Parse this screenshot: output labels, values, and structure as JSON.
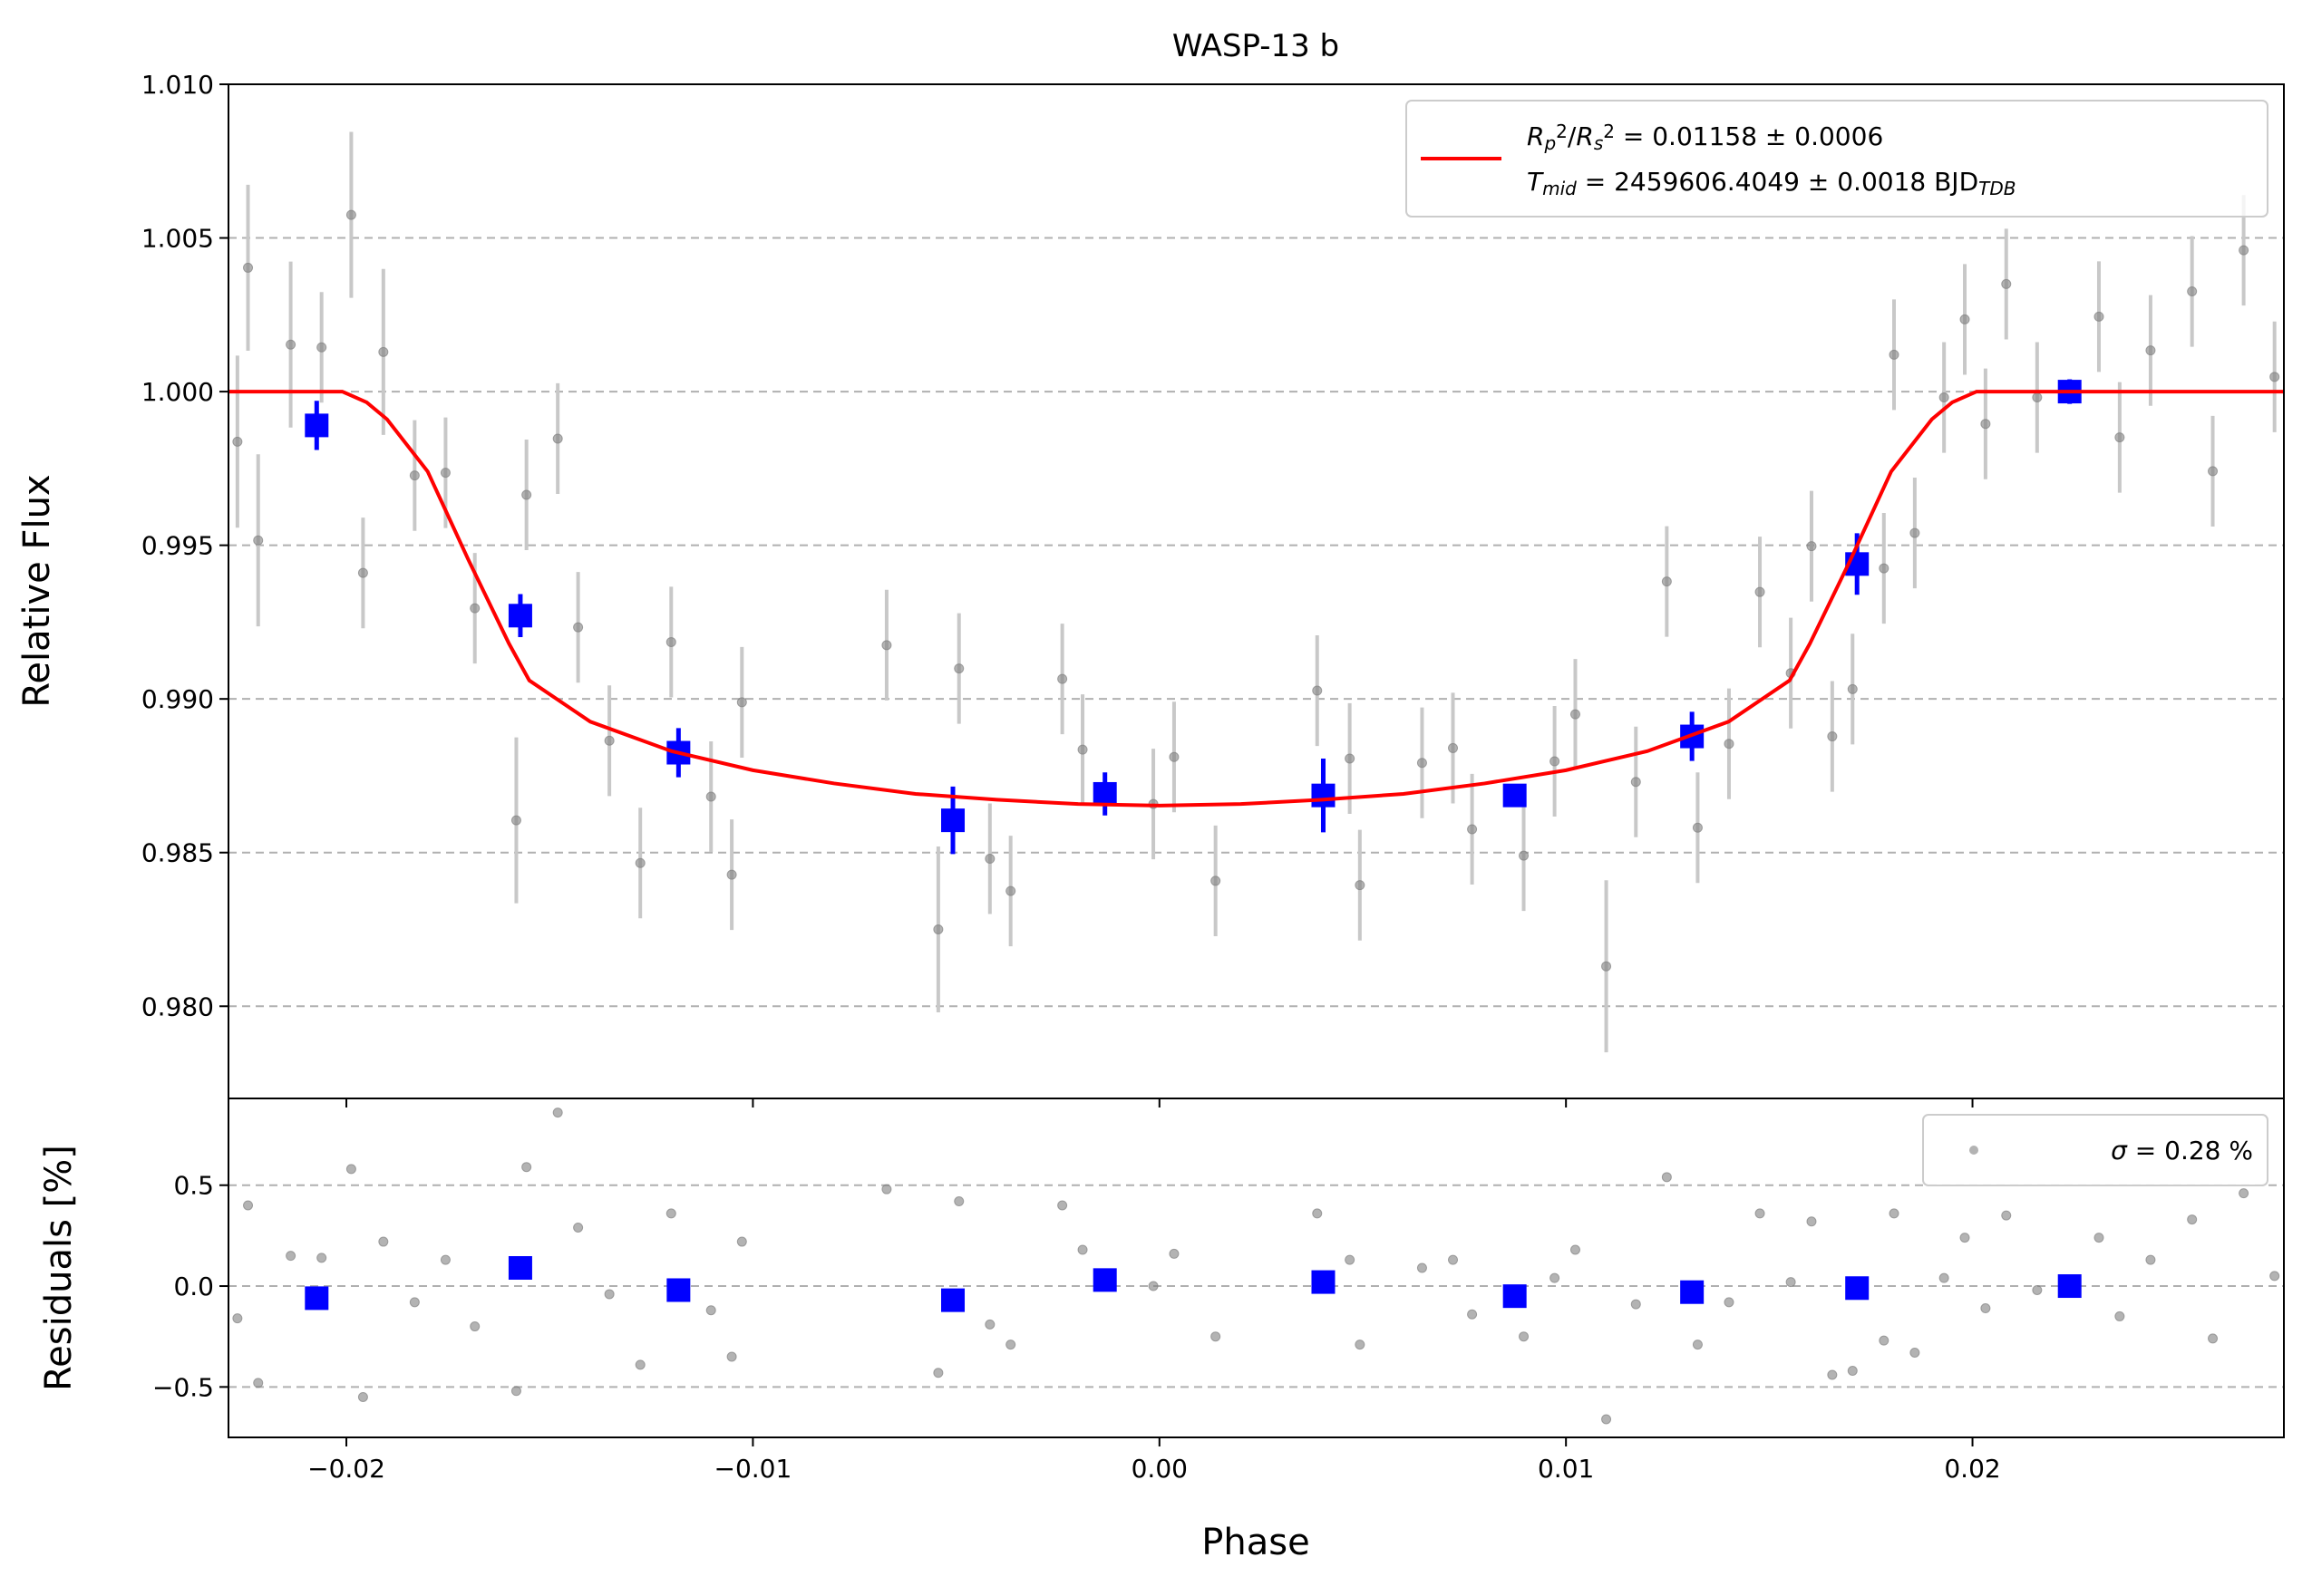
{
  "chart_data": [
    {
      "type": "scatter",
      "title": "WASP-13 b",
      "ylabel": "Relative Flux",
      "xlim": [
        -0.0229,
        0.02766
      ],
      "ylim": [
        0.977,
        1.01
      ],
      "yticks": [
        {
          "value": 0.98,
          "label": "0.980"
        },
        {
          "value": 0.985,
          "label": "0.985"
        },
        {
          "value": 0.99,
          "label": "0.990"
        },
        {
          "value": 0.995,
          "label": "0.995"
        },
        {
          "value": 1.0,
          "label": "1.000"
        },
        {
          "value": 1.005,
          "label": "1.005"
        },
        {
          "value": 1.01,
          "label": "1.010"
        }
      ],
      "grid": true,
      "legend": "upper right",
      "series": [
        {
          "kind": "errorbar-points",
          "color": "#808080",
          "errcolor": "#c8c8c8",
          "x": [
            -0.02268,
            -0.02242,
            -0.02217,
            -0.02137,
            -0.02061,
            -0.01988,
            -0.01959,
            -0.01909,
            -0.01832,
            -0.01756,
            -0.01684,
            -0.01582,
            -0.01557,
            -0.0148,
            -0.0143,
            -0.01353,
            -0.01277,
            -0.01201,
            -0.01103,
            -0.01052,
            -0.01027,
            -0.00671,
            -0.00544,
            -0.00493,
            -0.00417,
            -0.00366,
            -0.00239,
            -0.00189,
            -0.00015,
            0.00036,
            0.00138,
            0.00388,
            0.00468,
            0.00493,
            0.00646,
            0.00722,
            0.00769,
            0.00896,
            0.00972,
            0.01023,
            0.01099,
            0.01172,
            0.01248,
            0.01324,
            0.01401,
            0.01477,
            0.01553,
            0.01604,
            0.01655,
            0.01705,
            0.01782,
            0.01807,
            0.01858,
            0.0193,
            0.01981,
            0.02032,
            0.02083,
            0.02159,
            0.02311,
            0.02362,
            0.02438,
            0.0254,
            0.02591,
            0.02667,
            0.02743
          ],
          "values": [
            0.99837,
            1.00403,
            0.99516,
            1.00153,
            1.00144,
            1.00575,
            0.9941,
            1.00129,
            0.99727,
            0.99736,
            0.99295,
            0.98605,
            0.99664,
            0.99847,
            0.99233,
            0.98864,
            0.98466,
            0.99185,
            0.98682,
            0.98428,
            0.98989,
            0.99175,
            0.9825,
            0.99099,
            0.9848,
            0.98375,
            0.99065,
            0.98835,
            0.98658,
            0.98811,
            0.98408,
            0.99027,
            0.98806,
            0.98394,
            0.98792,
            0.9884,
            0.98576,
            0.9849,
            0.98797,
            0.9895,
            0.9813,
            0.9873,
            0.99382,
            0.98581,
            0.98854,
            0.99348,
            0.99084,
            0.99497,
            0.98878,
            0.99032,
            0.99425,
            1.0012,
            0.9954,
            0.99981,
            1.00235,
            0.99895,
            1.0035,
            0.99981,
            1.00244,
            0.99851,
            1.00134,
            1.00326,
            0.99741,
            1.0046,
            1.00048
          ],
          "errors": [
            0.0028,
            0.0027,
            0.0028,
            0.0027,
            0.0018,
            0.0027,
            0.0018,
            0.0027,
            0.0018,
            0.0018,
            0.0018,
            0.0027,
            0.0018,
            0.0018,
            0.0018,
            0.0018,
            0.0018,
            0.0018,
            0.0018,
            0.0018,
            0.0018,
            0.0018,
            0.0027,
            0.0018,
            0.0018,
            0.0018,
            0.0018,
            0.0018,
            0.0018,
            0.0018,
            0.0018,
            0.0018,
            0.0018,
            0.0018,
            0.0018,
            0.0018,
            0.0018,
            0.0018,
            0.0018,
            0.0018,
            0.0028,
            0.0018,
            0.0018,
            0.0018,
            0.0018,
            0.0018,
            0.0018,
            0.0018,
            0.0018,
            0.0018,
            0.0018,
            0.0018,
            0.0018,
            0.0018,
            0.0018,
            0.0018,
            0.0018,
            0.0018,
            0.0018,
            0.0018,
            0.0018,
            0.0018,
            0.0018,
            0.0018,
            0.0018
          ]
        },
        {
          "kind": "errorbar-squares",
          "color": "#0000ff",
          "x": [
            -0.02073,
            -0.01572,
            -0.01183,
            -0.00508,
            -0.00134,
            0.00403,
            0.00874,
            0.0131,
            0.01716,
            0.02239
          ],
          "values": [
            0.9989,
            0.99271,
            0.98825,
            0.98605,
            0.98691,
            0.98686,
            0.98686,
            0.98878,
            0.99439,
            1.0
          ],
          "errors": [
            0.0008,
            0.0007,
            0.0008,
            0.0011,
            0.0007,
            0.0012,
            0.0003,
            0.0008,
            0.001,
            0.0004
          ]
        },
        {
          "kind": "line",
          "color": "#ff0000",
          "legend_lines": [
            [
              {
                "text": "R",
                "italic": true
              },
              {
                "text": "p",
                "italic": true,
                "pos": "sub"
              },
              {
                "text": "2",
                "pos": "sup"
              },
              {
                "text": "/"
              },
              {
                "text": "R",
                "italic": true
              },
              {
                "text": "s",
                "italic": true,
                "pos": "sub"
              },
              {
                "text": "2",
                "pos": "sup"
              },
              {
                "text": " = 0.01158 ± 0.0006"
              }
            ],
            [
              {
                "text": "T",
                "italic": true
              },
              {
                "text": "mid",
                "italic": true,
                "pos": "sub"
              },
              {
                "text": " = 2459606.4049 ± 0.0018 BJD"
              },
              {
                "text": "TDB",
                "italic": true,
                "pos": "sub"
              }
            ]
          ],
          "x": [
            -0.0229,
            -0.0201,
            -0.0195,
            -0.019,
            -0.018,
            -0.017,
            -0.016,
            -0.0155,
            -0.014,
            -0.012,
            -0.01,
            -0.008,
            -0.006,
            -0.004,
            -0.002,
            0,
            0.002,
            0.004,
            0.006,
            0.008,
            0.01,
            0.012,
            0.014,
            0.0155,
            0.016,
            0.017,
            0.018,
            0.019,
            0.0195,
            0.0201,
            0.02766
          ],
          "values": [
            1,
            1,
            0.99965,
            0.9991,
            0.9974,
            0.99453,
            0.9918,
            0.9906,
            0.98926,
            0.9883,
            0.98768,
            0.98725,
            0.98691,
            0.98672,
            0.98658,
            0.98653,
            0.98658,
            0.98672,
            0.98691,
            0.98725,
            0.98768,
            0.9883,
            0.98926,
            0.9906,
            0.9918,
            0.99453,
            0.9974,
            0.9991,
            0.99965,
            1,
            1
          ]
        }
      ]
    },
    {
      "type": "scatter",
      "xlabel": "Phase",
      "ylabel": "Residuals [%]",
      "xlim": [
        -0.0229,
        0.02766
      ],
      "ylim": [
        -0.75,
        0.93
      ],
      "xticks": [
        {
          "value": -0.02,
          "label": "−0.02"
        },
        {
          "value": -0.01,
          "label": "−0.01"
        },
        {
          "value": 0,
          "label": "0.00"
        },
        0.01,
        0.02
      ],
      "yticks": [
        {
          "value": -0.5,
          "label": "−0.5"
        },
        {
          "value": 0,
          "label": "0.0"
        },
        0.5
      ],
      "grid": true,
      "legend": "upper right",
      "series": [
        {
          "kind": "points",
          "color": "#808080",
          "legend_lines": [
            [
              {
                "text": "σ",
                "italic": true
              },
              {
                "text": " = 0.28 %"
              }
            ]
          ],
          "x": [
            -0.02268,
            -0.02242,
            -0.02217,
            -0.02137,
            -0.02061,
            -0.01988,
            -0.01959,
            -0.01909,
            -0.01832,
            -0.01756,
            -0.01684,
            -0.01582,
            -0.01557,
            -0.0148,
            -0.0143,
            -0.01353,
            -0.01277,
            -0.01201,
            -0.01103,
            -0.01052,
            -0.01027,
            -0.00671,
            -0.00544,
            -0.00493,
            -0.00417,
            -0.00366,
            -0.00239,
            -0.00189,
            -0.00015,
            0.00036,
            0.00138,
            0.00388,
            0.00468,
            0.00493,
            0.00646,
            0.00722,
            0.00769,
            0.00896,
            0.00972,
            0.01023,
            0.01099,
            0.01172,
            0.01248,
            0.01324,
            0.01401,
            0.01477,
            0.01553,
            0.01604,
            0.01655,
            0.01705,
            0.01782,
            0.01807,
            0.01858,
            0.0193,
            0.01981,
            0.02032,
            0.02083,
            0.02159,
            0.02311,
            0.02362,
            0.02438,
            0.0254,
            0.02591,
            0.02667,
            0.02743
          ],
          "values": [
            -0.16,
            0.4,
            -0.48,
            0.15,
            0.14,
            0.58,
            -0.55,
            0.22,
            -0.08,
            0.13,
            -0.2,
            -0.52,
            0.59,
            0.86,
            0.29,
            -0.04,
            -0.39,
            0.36,
            -0.12,
            -0.35,
            0.22,
            0.48,
            -0.43,
            0.42,
            -0.19,
            -0.29,
            0.4,
            0.18,
            0,
            0.16,
            -0.25,
            0.36,
            0.13,
            -0.29,
            0.09,
            0.13,
            -0.14,
            -0.25,
            0.04,
            0.18,
            -0.66,
            -0.09,
            0.54,
            -0.29,
            -0.08,
            0.36,
            0.02,
            0.32,
            -0.44,
            -0.42,
            -0.27,
            0.36,
            -0.33,
            0.04,
            0.24,
            -0.11,
            0.35,
            -0.02,
            0.24,
            -0.15,
            0.13,
            0.33,
            -0.26,
            0.46,
            0.05
          ]
        },
        {
          "kind": "squares",
          "color": "#0000ff",
          "x": [
            -0.02073,
            -0.01572,
            -0.01183,
            -0.00508,
            -0.00134,
            0.00403,
            0.00874,
            0.0131,
            0.01716,
            0.02239
          ],
          "values": [
            -0.06,
            0.09,
            -0.02,
            -0.07,
            0.03,
            0.02,
            -0.05,
            -0.03,
            -0.01,
            0
          ]
        }
      ]
    }
  ]
}
